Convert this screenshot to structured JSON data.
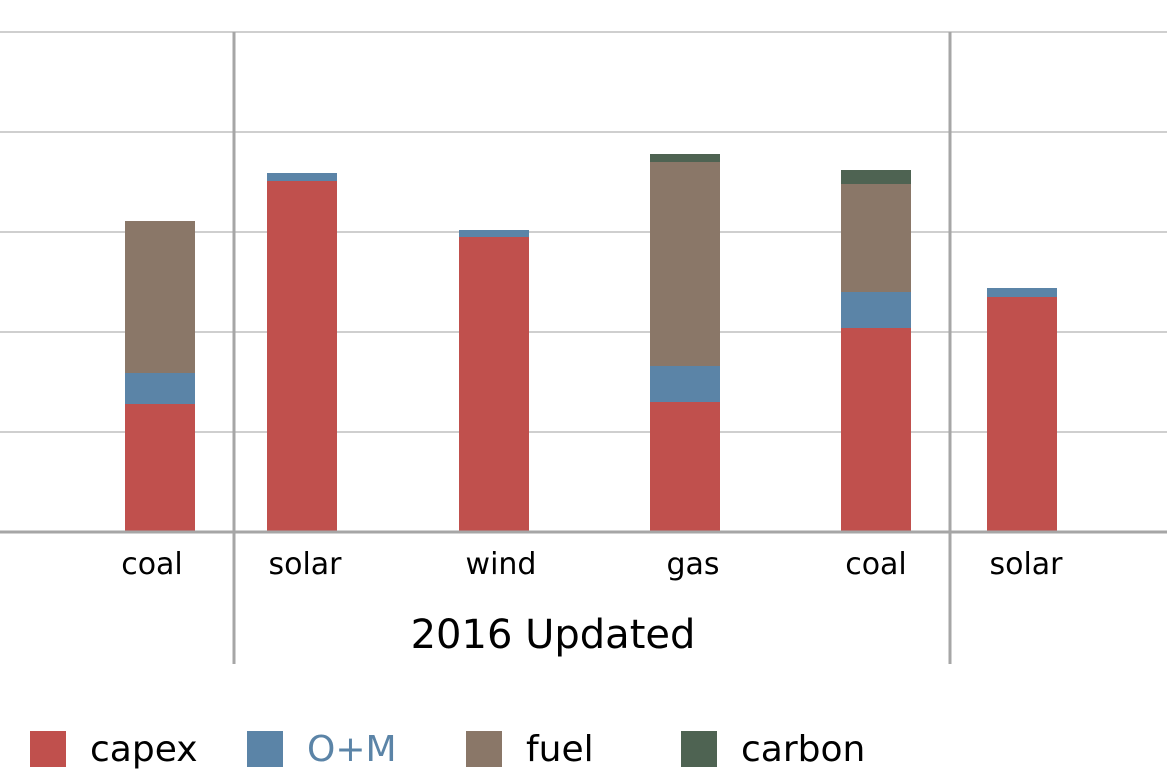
{
  "chart_data": {
    "type": "bar",
    "stacked": true,
    "title": "",
    "xlabel": "",
    "ylabel": "",
    "ylim": [
      0,
      5
    ],
    "grid": true,
    "legend_position": "bottom",
    "categories": [
      "coal",
      "solar",
      "wind",
      "gas",
      "coal",
      "solar"
    ],
    "groups": [
      {
        "label": "",
        "span": [
          0,
          0
        ]
      },
      {
        "label": "2016 Updated",
        "span": [
          1,
          4
        ]
      },
      {
        "label": "",
        "span": [
          5,
          5
        ]
      }
    ],
    "series": [
      {
        "name": "capex",
        "color": "#c0504d",
        "values": [
          1.28,
          3.51,
          2.95,
          1.3,
          2.04,
          2.35
        ]
      },
      {
        "name": "O+M",
        "color": "#5b84a7",
        "values": [
          0.31,
          0.08,
          0.07,
          0.36,
          0.36,
          0.09
        ]
      },
      {
        "name": "fuel",
        "color": "#8a7768",
        "values": [
          1.52,
          0,
          0,
          2.04,
          1.08,
          0
        ]
      },
      {
        "name": "carbon",
        "color": "#4e6352",
        "values": [
          0,
          0,
          0,
          0.08,
          0.14,
          0
        ]
      }
    ],
    "legend_label_colors": [
      "#000000",
      "#5b84a7",
      "#000000",
      "#000000"
    ]
  }
}
